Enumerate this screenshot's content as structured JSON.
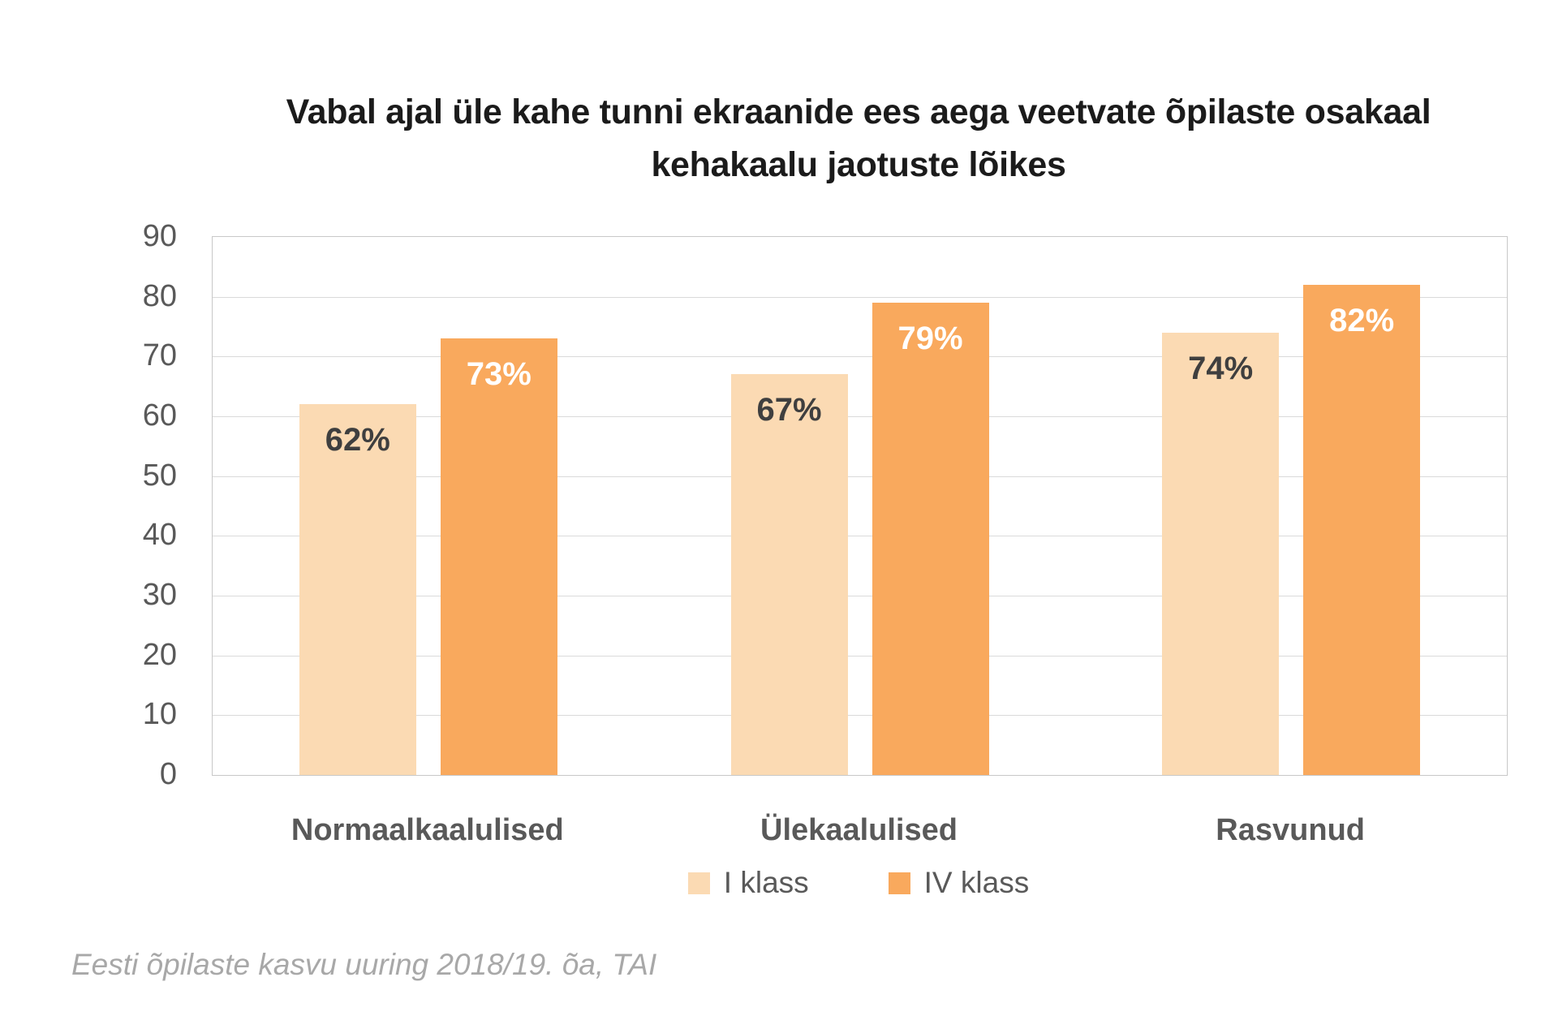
{
  "title": {
    "line1": "Vabal ajal üle kahe tunni ekraanide ees aega veetvate õpilaste osakaal",
    "line2": "kehakaalu jaotuste lõikes"
  },
  "source_note": "Eesti õpilaste kasvu uuring 2018/19. õa, TAI",
  "chart_data": {
    "type": "bar",
    "title": "Vabal ajal üle kahe tunni ekraanide ees aega veetvate õpilaste osakaal kehakaalu jaotuste lõikes",
    "categories": [
      "Normaalkaalulised",
      "Ülekaalulised",
      "Rasvunud"
    ],
    "series": [
      {
        "name": "I klass",
        "color": "#fbdab3",
        "label_color": "#3f3f3f",
        "values": [
          62,
          67,
          74
        ],
        "data_labels": [
          "62%",
          "67%",
          "74%"
        ]
      },
      {
        "name": "IV klass",
        "color": "#f9a95d",
        "label_color": "#ffffff",
        "values": [
          73,
          79,
          82
        ],
        "data_labels": [
          "73%",
          "79%",
          "82%"
        ]
      }
    ],
    "xlabel": "",
    "ylabel": "",
    "ylim": [
      0,
      90
    ],
    "ytick_step": 10,
    "yticks": [
      0,
      10,
      20,
      30,
      40,
      50,
      60,
      70,
      80,
      90
    ],
    "grid": true,
    "legend_position": "bottom",
    "axis_color": "#c8c8c8",
    "gridline_color": "#dadada",
    "tick_label_color": "#595959",
    "category_label_color": "#595959",
    "title_color": "#1b1b1b",
    "source_color": "#a8a8a8",
    "background_color": "#ffffff"
  }
}
